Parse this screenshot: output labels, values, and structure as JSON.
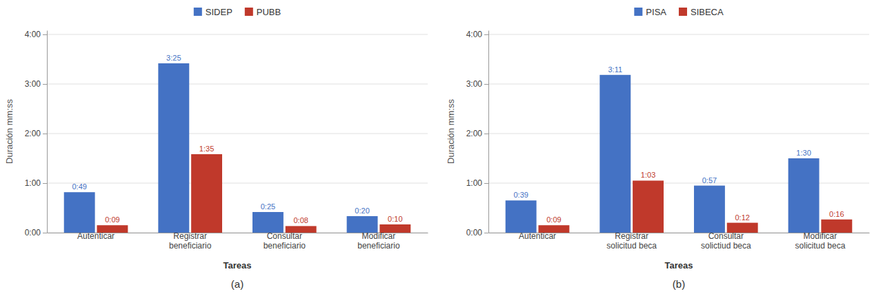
{
  "chart_data": [
    {
      "type": "bar",
      "subtitle": "(a)",
      "xlabel": "Tareas",
      "ylabel": "Duración mm:ss",
      "categories": [
        "Autenticar",
        "Registrar\nbeneficiario",
        "Consultar\nbeneficiario",
        "Modificar\nbeneficiario"
      ],
      "series": [
        {
          "name": "SIDEP",
          "color": "#4472C4",
          "values": [
            49,
            205,
            25,
            20
          ],
          "value_labels": [
            "0:49",
            "3:25",
            "0:25",
            "0:20"
          ]
        },
        {
          "name": "PUBB",
          "color": "#C0392B",
          "values": [
            9,
            95,
            8,
            10
          ],
          "value_labels": [
            "0:09",
            "1:35",
            "0:08",
            "0:10"
          ]
        }
      ],
      "ylim": [
        0,
        245
      ],
      "yticks": [
        {
          "value": 0,
          "label": "0:00"
        },
        {
          "value": 60,
          "label": "1:00"
        },
        {
          "value": 120,
          "label": "2:00"
        },
        {
          "value": 180,
          "label": "3:00"
        },
        {
          "value": 240,
          "label": "4:00"
        }
      ],
      "grid": true,
      "legend": "top"
    },
    {
      "type": "bar",
      "subtitle": "(b)",
      "xlabel": "Tareas",
      "ylabel": "Duración mm:ss",
      "categories": [
        "Autenticar",
        "Registrar\nsolicitud beca",
        "Consultar\nsolictiud beca",
        "Modificar\nsolicitud beca"
      ],
      "series": [
        {
          "name": "PISA",
          "color": "#4472C4",
          "values": [
            39,
            191,
            57,
            90
          ],
          "value_labels": [
            "0:39",
            "3:11",
            "0:57",
            "1:30"
          ]
        },
        {
          "name": "SIBECA",
          "color": "#C0392B",
          "values": [
            9,
            63,
            12,
            16
          ],
          "value_labels": [
            "0:09",
            "1:03",
            "0:12",
            "0:16"
          ]
        }
      ],
      "ylim": [
        0,
        245
      ],
      "yticks": [
        {
          "value": 0,
          "label": "0:00"
        },
        {
          "value": 60,
          "label": "1:00"
        },
        {
          "value": 120,
          "label": "2:00"
        },
        {
          "value": 180,
          "label": "3:00"
        },
        {
          "value": 240,
          "label": "4:00"
        }
      ],
      "grid": true,
      "legend": "top"
    }
  ]
}
